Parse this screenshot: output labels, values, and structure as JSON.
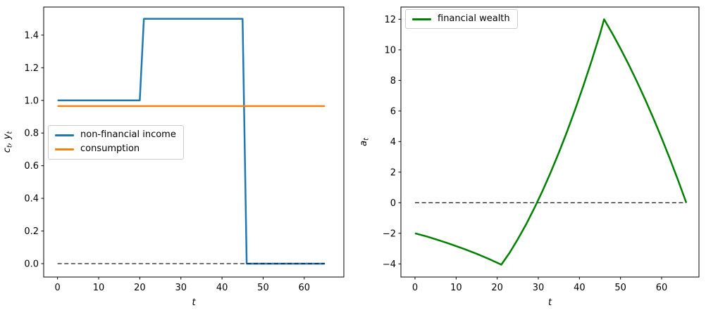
{
  "figure": {
    "background": "#ffffff",
    "text_color": "#000000",
    "spine_color": "#000000"
  },
  "chart_data": [
    {
      "id": "income-consumption-panel",
      "type": "line",
      "title": "",
      "xlabel": "t",
      "ylabel": "c_t, y_t",
      "xlim": [
        -3.37,
        69.63
      ],
      "ylim": [
        -0.082,
        1.572
      ],
      "xticks": [
        0,
        10,
        20,
        30,
        40,
        50,
        60
      ],
      "xtick_labels": [
        "0",
        "10",
        "20",
        "30",
        "40",
        "50",
        "60"
      ],
      "yticks": [
        0.0,
        0.2,
        0.4,
        0.6,
        0.8,
        1.0,
        1.2,
        1.4
      ],
      "ytick_labels": [
        "0.0",
        "0.2",
        "0.4",
        "0.6",
        "0.8",
        "1.0",
        "1.2",
        "1.4"
      ],
      "grid": false,
      "legend": {
        "loc": "center left",
        "entries": [
          "non-financial income",
          "consumption"
        ]
      },
      "series": [
        {
          "name": "non-financial income",
          "color": "#1f77b4",
          "linestyle": "solid",
          "linewidth": 2.5,
          "x": [
            0,
            20,
            21,
            45,
            46,
            65
          ],
          "y": [
            1.0,
            1.0,
            1.5,
            1.5,
            0.0,
            0.0
          ]
        },
        {
          "name": "consumption",
          "color": "#ff7f0e",
          "linestyle": "solid",
          "linewidth": 2.5,
          "x": [
            0,
            65
          ],
          "y": [
            0.965,
            0.965
          ]
        },
        {
          "name": "zero-line",
          "color": "#000000",
          "linestyle": "dashed",
          "linewidth": 1.2,
          "x": [
            0,
            65
          ],
          "y": [
            0.0,
            0.0
          ]
        }
      ]
    },
    {
      "id": "financial-wealth-panel",
      "type": "line",
      "title": "",
      "xlabel": "t",
      "ylabel": "a_t",
      "xlim": [
        -3.43,
        69.08
      ],
      "ylim": [
        -4.86,
        12.8
      ],
      "xticks": [
        0,
        10,
        20,
        30,
        40,
        50,
        60
      ],
      "xtick_labels": [
        "0",
        "10",
        "20",
        "30",
        "40",
        "50",
        "60"
      ],
      "yticks": [
        -4,
        -2,
        0,
        2,
        4,
        6,
        8,
        10,
        12
      ],
      "ytick_labels": [
        "−4",
        "−2",
        "0",
        "2",
        "4",
        "6",
        "8",
        "10",
        "12"
      ],
      "grid": false,
      "legend": {
        "loc": "upper left",
        "entries": [
          "financial wealth"
        ]
      },
      "series": [
        {
          "name": "zero-line",
          "color": "#000000",
          "linestyle": "dashed",
          "linewidth": 1.2,
          "x": [
            0,
            66
          ],
          "y": [
            0.0,
            0.0
          ]
        },
        {
          "name": "financial wealth",
          "color": "#008000",
          "linestyle": "solid",
          "linewidth": 2.5,
          "x": [
            0,
            3,
            6,
            9,
            12,
            15,
            18,
            21,
            23,
            25,
            27,
            29,
            31,
            33,
            35,
            37,
            39,
            41,
            43,
            45,
            46,
            48,
            50,
            52,
            54,
            56,
            58,
            60,
            62,
            64,
            66
          ],
          "y": [
            -2.0,
            -2.22,
            -2.47,
            -2.74,
            -3.03,
            -3.34,
            -3.68,
            -4.05,
            -3.28,
            -2.39,
            -1.43,
            -0.37,
            0.76,
            1.98,
            3.28,
            4.66,
            6.13,
            7.68,
            9.31,
            11.03,
            12.0,
            11.07,
            10.08,
            9.03,
            7.92,
            6.75,
            5.52,
            4.23,
            2.88,
            1.47,
            0.0
          ]
        }
      ]
    }
  ]
}
